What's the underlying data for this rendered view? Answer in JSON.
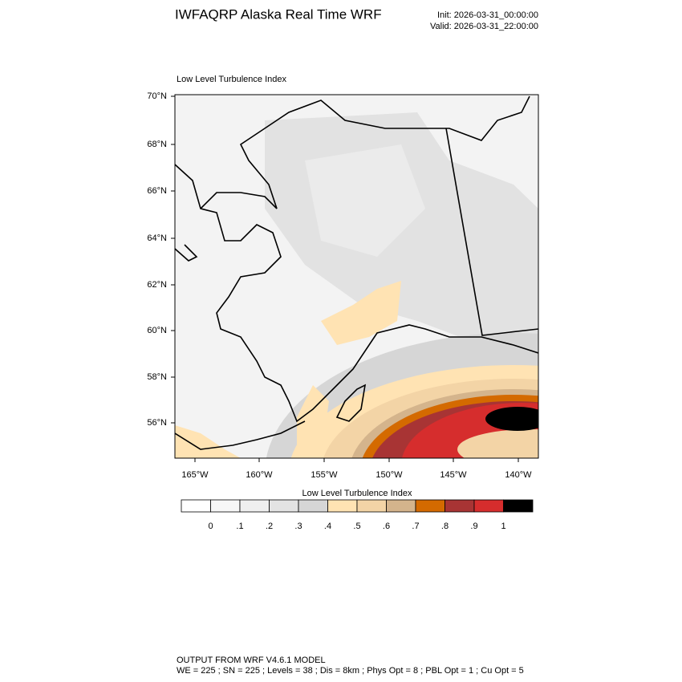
{
  "header": {
    "title": "IWFAQRP Alaska Real Time WRF",
    "init": "Init: 2026-03-31_00:00:00",
    "valid": "Valid: 2026-03-31_22:00:00"
  },
  "map": {
    "title": "Low Level Turbulence Index",
    "lat_labels": [
      "70°N",
      "68°N",
      "66°N",
      "64°N",
      "62°N",
      "60°N",
      "58°N",
      "56°N"
    ],
    "lon_labels": [
      "165°W",
      "160°W",
      "155°W",
      "150°W",
      "145°W",
      "140°W"
    ]
  },
  "colorbar": {
    "title": "Low Level Turbulence Index",
    "colors": [
      "#ffffff",
      "#f7f7f7",
      "#efefef",
      "#e3e3e3",
      "#d6d6d6",
      "#ffe3b3",
      "#f3d4a6",
      "#d4b48c",
      "#d46a00",
      "#a83434",
      "#d62d2d",
      "#000000"
    ],
    "ticks": [
      0,
      {
        "value": 0.1,
        "label": ".1"
      },
      {
        "value": 0.2,
        "label": ".2"
      },
      {
        "value": 0.3,
        "label": ".3"
      },
      {
        "value": 0.4,
        "label": ".4"
      },
      {
        "value": 0.5,
        "label": ".5"
      },
      {
        "value": 0.6,
        "label": ".6"
      },
      {
        "value": 0.7,
        "label": ".7"
      },
      {
        "value": 0.8,
        "label": ".8"
      },
      {
        "value": 0.9,
        "label": ".9"
      },
      1
    ]
  },
  "footer": {
    "line1": "OUTPUT FROM WRF V4.6.1 MODEL",
    "line2": "WE = 225 ; SN = 225 ; Levels = 38 ; Dis = 8km ; Phys Opt = 8 ; PBL Opt = 1 ; Cu Opt = 5"
  }
}
